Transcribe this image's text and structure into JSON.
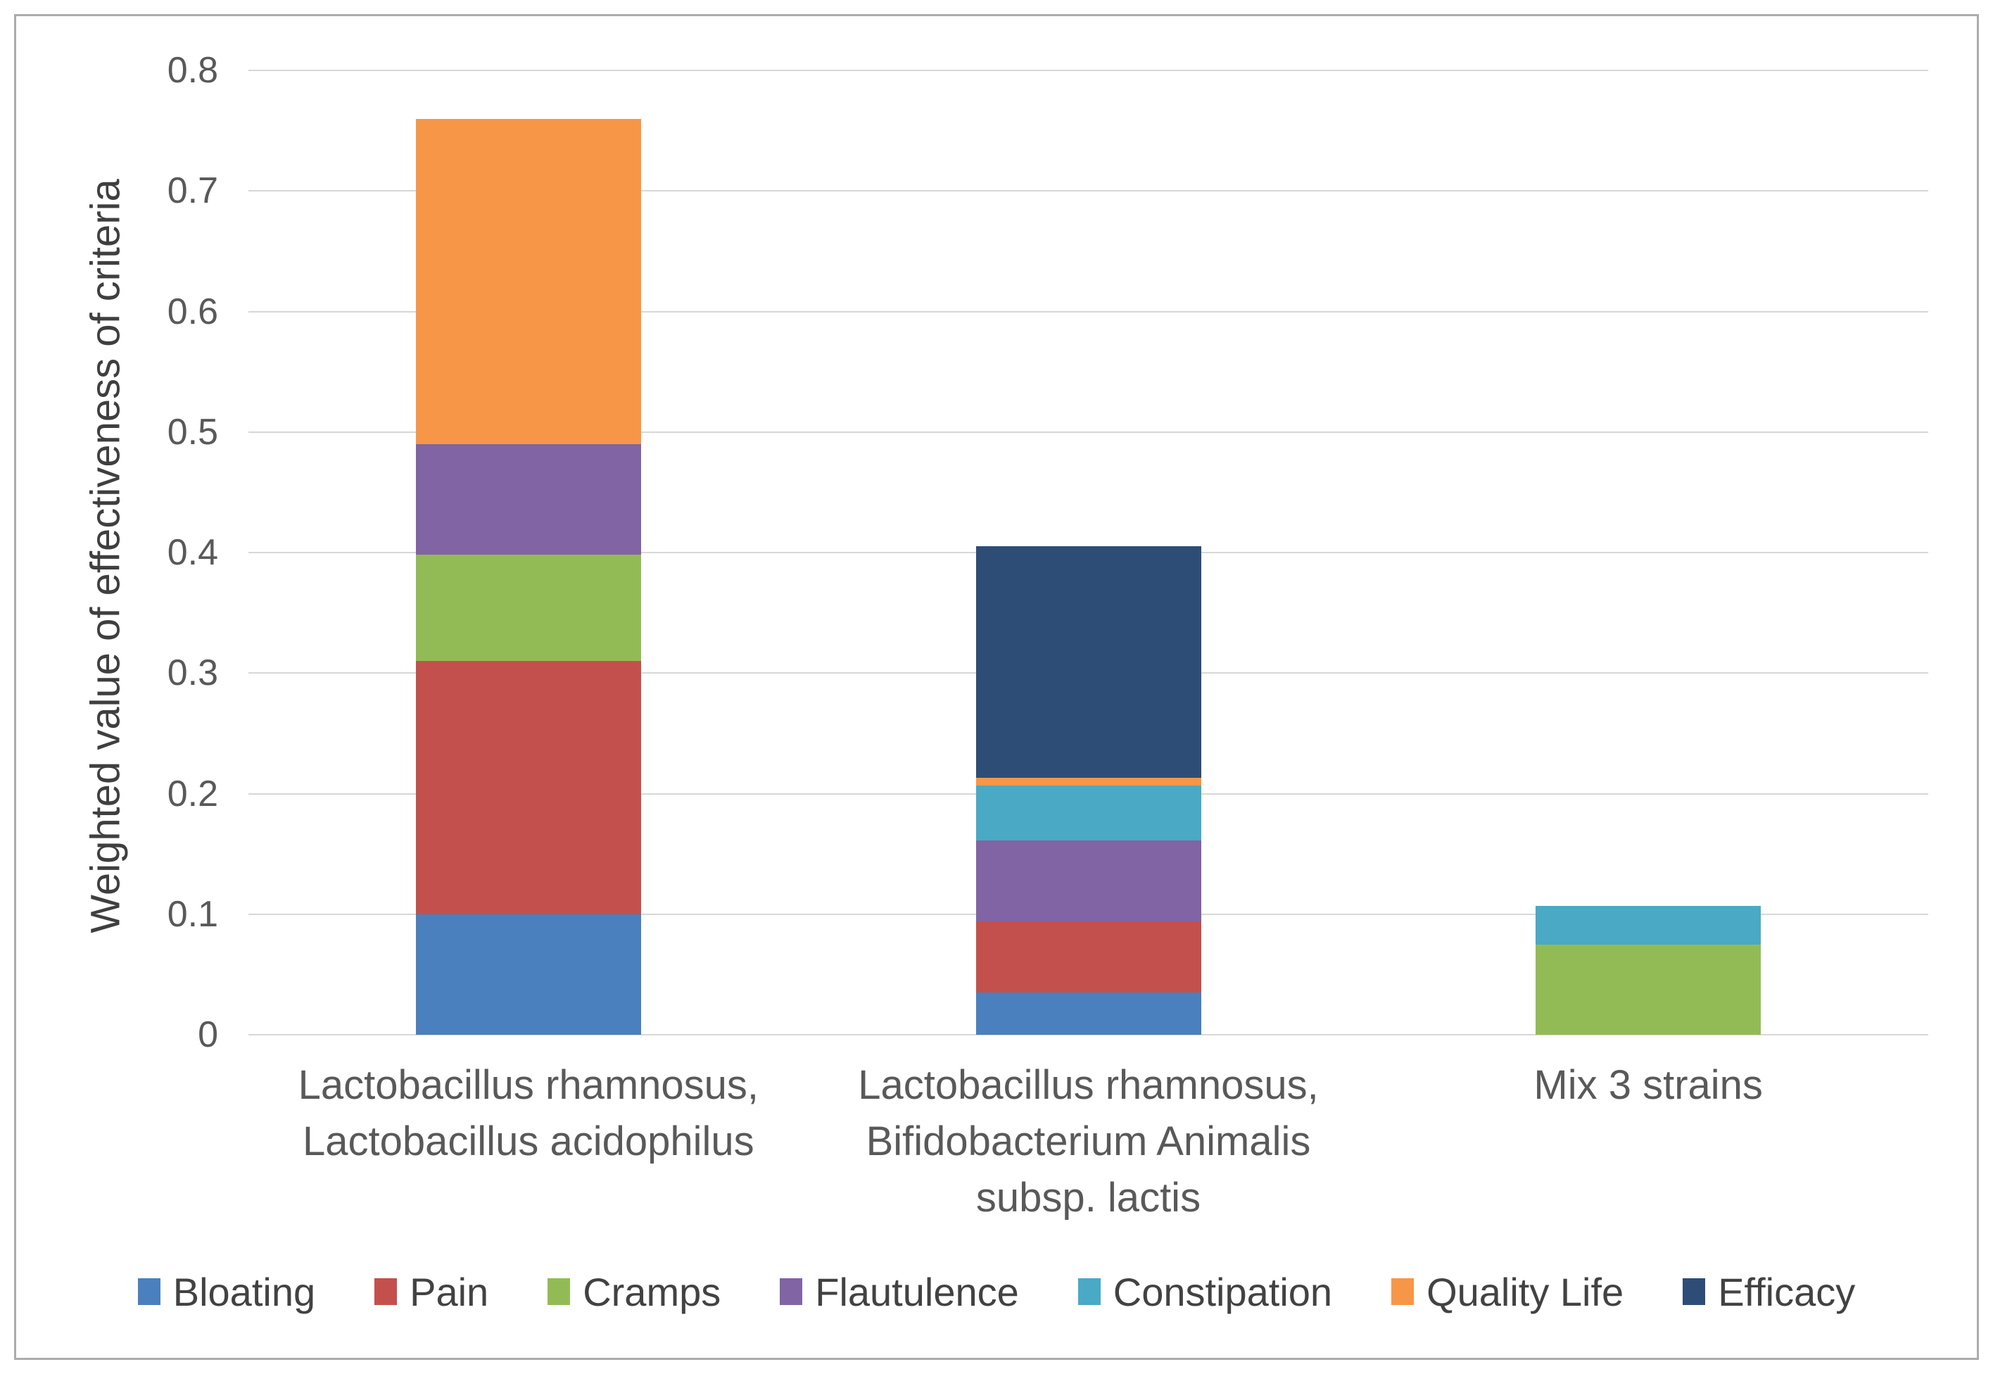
{
  "chart_data": {
    "type": "bar",
    "stacked": true,
    "title": "",
    "xlabel": "",
    "ylabel": "Weighted value of effectiveness of criteria",
    "ylim": [
      0,
      0.8
    ],
    "grid": true,
    "legend_position": "bottom",
    "yticks": [
      {
        "label": "0.8",
        "value": 0.8
      },
      {
        "label": "0.7",
        "value": 0.7
      },
      {
        "label": "0.6",
        "value": 0.6
      },
      {
        "label": "0.5",
        "value": 0.5
      },
      {
        "label": "0.4",
        "value": 0.4
      },
      {
        "label": "0.3",
        "value": 0.3
      },
      {
        "label": "0.2",
        "value": 0.2
      },
      {
        "label": "0.1",
        "value": 0.1
      },
      {
        "label": "0",
        "value": 0.0
      }
    ],
    "categories": [
      "Lactobacillus rhamnosus,\nLactobacillus acidophilus",
      "Lactobacillus rhamnosus,\nBifidobacterium Animalis\nsubsp. lactis",
      "Mix 3 strains"
    ],
    "series": [
      {
        "name": "Bloating",
        "color": "#4A80BD",
        "values": [
          0.1,
          0.035,
          0
        ]
      },
      {
        "name": "Pain",
        "color": "#C4504D",
        "values": [
          0.21,
          0.059,
          0
        ]
      },
      {
        "name": "Cramps",
        "color": "#93BB55",
        "values": [
          0.088,
          0,
          0.075
        ]
      },
      {
        "name": "Flautulence",
        "color": "#8064A3",
        "values": [
          0.092,
          0.067,
          0
        ]
      },
      {
        "name": "Constipation",
        "color": "#4AA9C5",
        "values": [
          0,
          0.046,
          0.032
        ]
      },
      {
        "name": "Quality Life",
        "color": "#F89648",
        "values": [
          0.27,
          0.006,
          0
        ]
      },
      {
        "name": "Efficacy",
        "color": "#2E4D76",
        "values": [
          0,
          0.192,
          0
        ]
      }
    ],
    "totals": [
      0.76,
      0.405,
      0.107
    ]
  }
}
